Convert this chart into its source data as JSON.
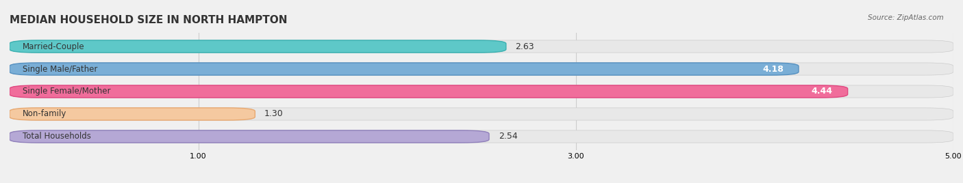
{
  "title": "MEDIAN HOUSEHOLD SIZE IN NORTH HAMPTON",
  "source": "Source: ZipAtlas.com",
  "categories": [
    "Married-Couple",
    "Single Male/Father",
    "Single Female/Mother",
    "Non-family",
    "Total Households"
  ],
  "values": [
    2.63,
    4.18,
    4.44,
    1.3,
    2.54
  ],
  "bar_colors": [
    "#5ec8c8",
    "#7aaed6",
    "#f06d9b",
    "#f5c9a0",
    "#b5a8d5"
  ],
  "bar_edge_colors": [
    "#3ab0b0",
    "#5590c0",
    "#e04880",
    "#e8a870",
    "#9080bb"
  ],
  "xlim": [
    0,
    5.0
  ],
  "xticks": [
    1.0,
    3.0,
    5.0
  ],
  "value_fontsize": 9,
  "label_fontsize": 8.5,
  "title_fontsize": 11,
  "background_color": "#f0f0f0",
  "bar_background_color": "#e8e8e8",
  "bar_height": 0.55,
  "value_label_color_threshold": 3.5
}
